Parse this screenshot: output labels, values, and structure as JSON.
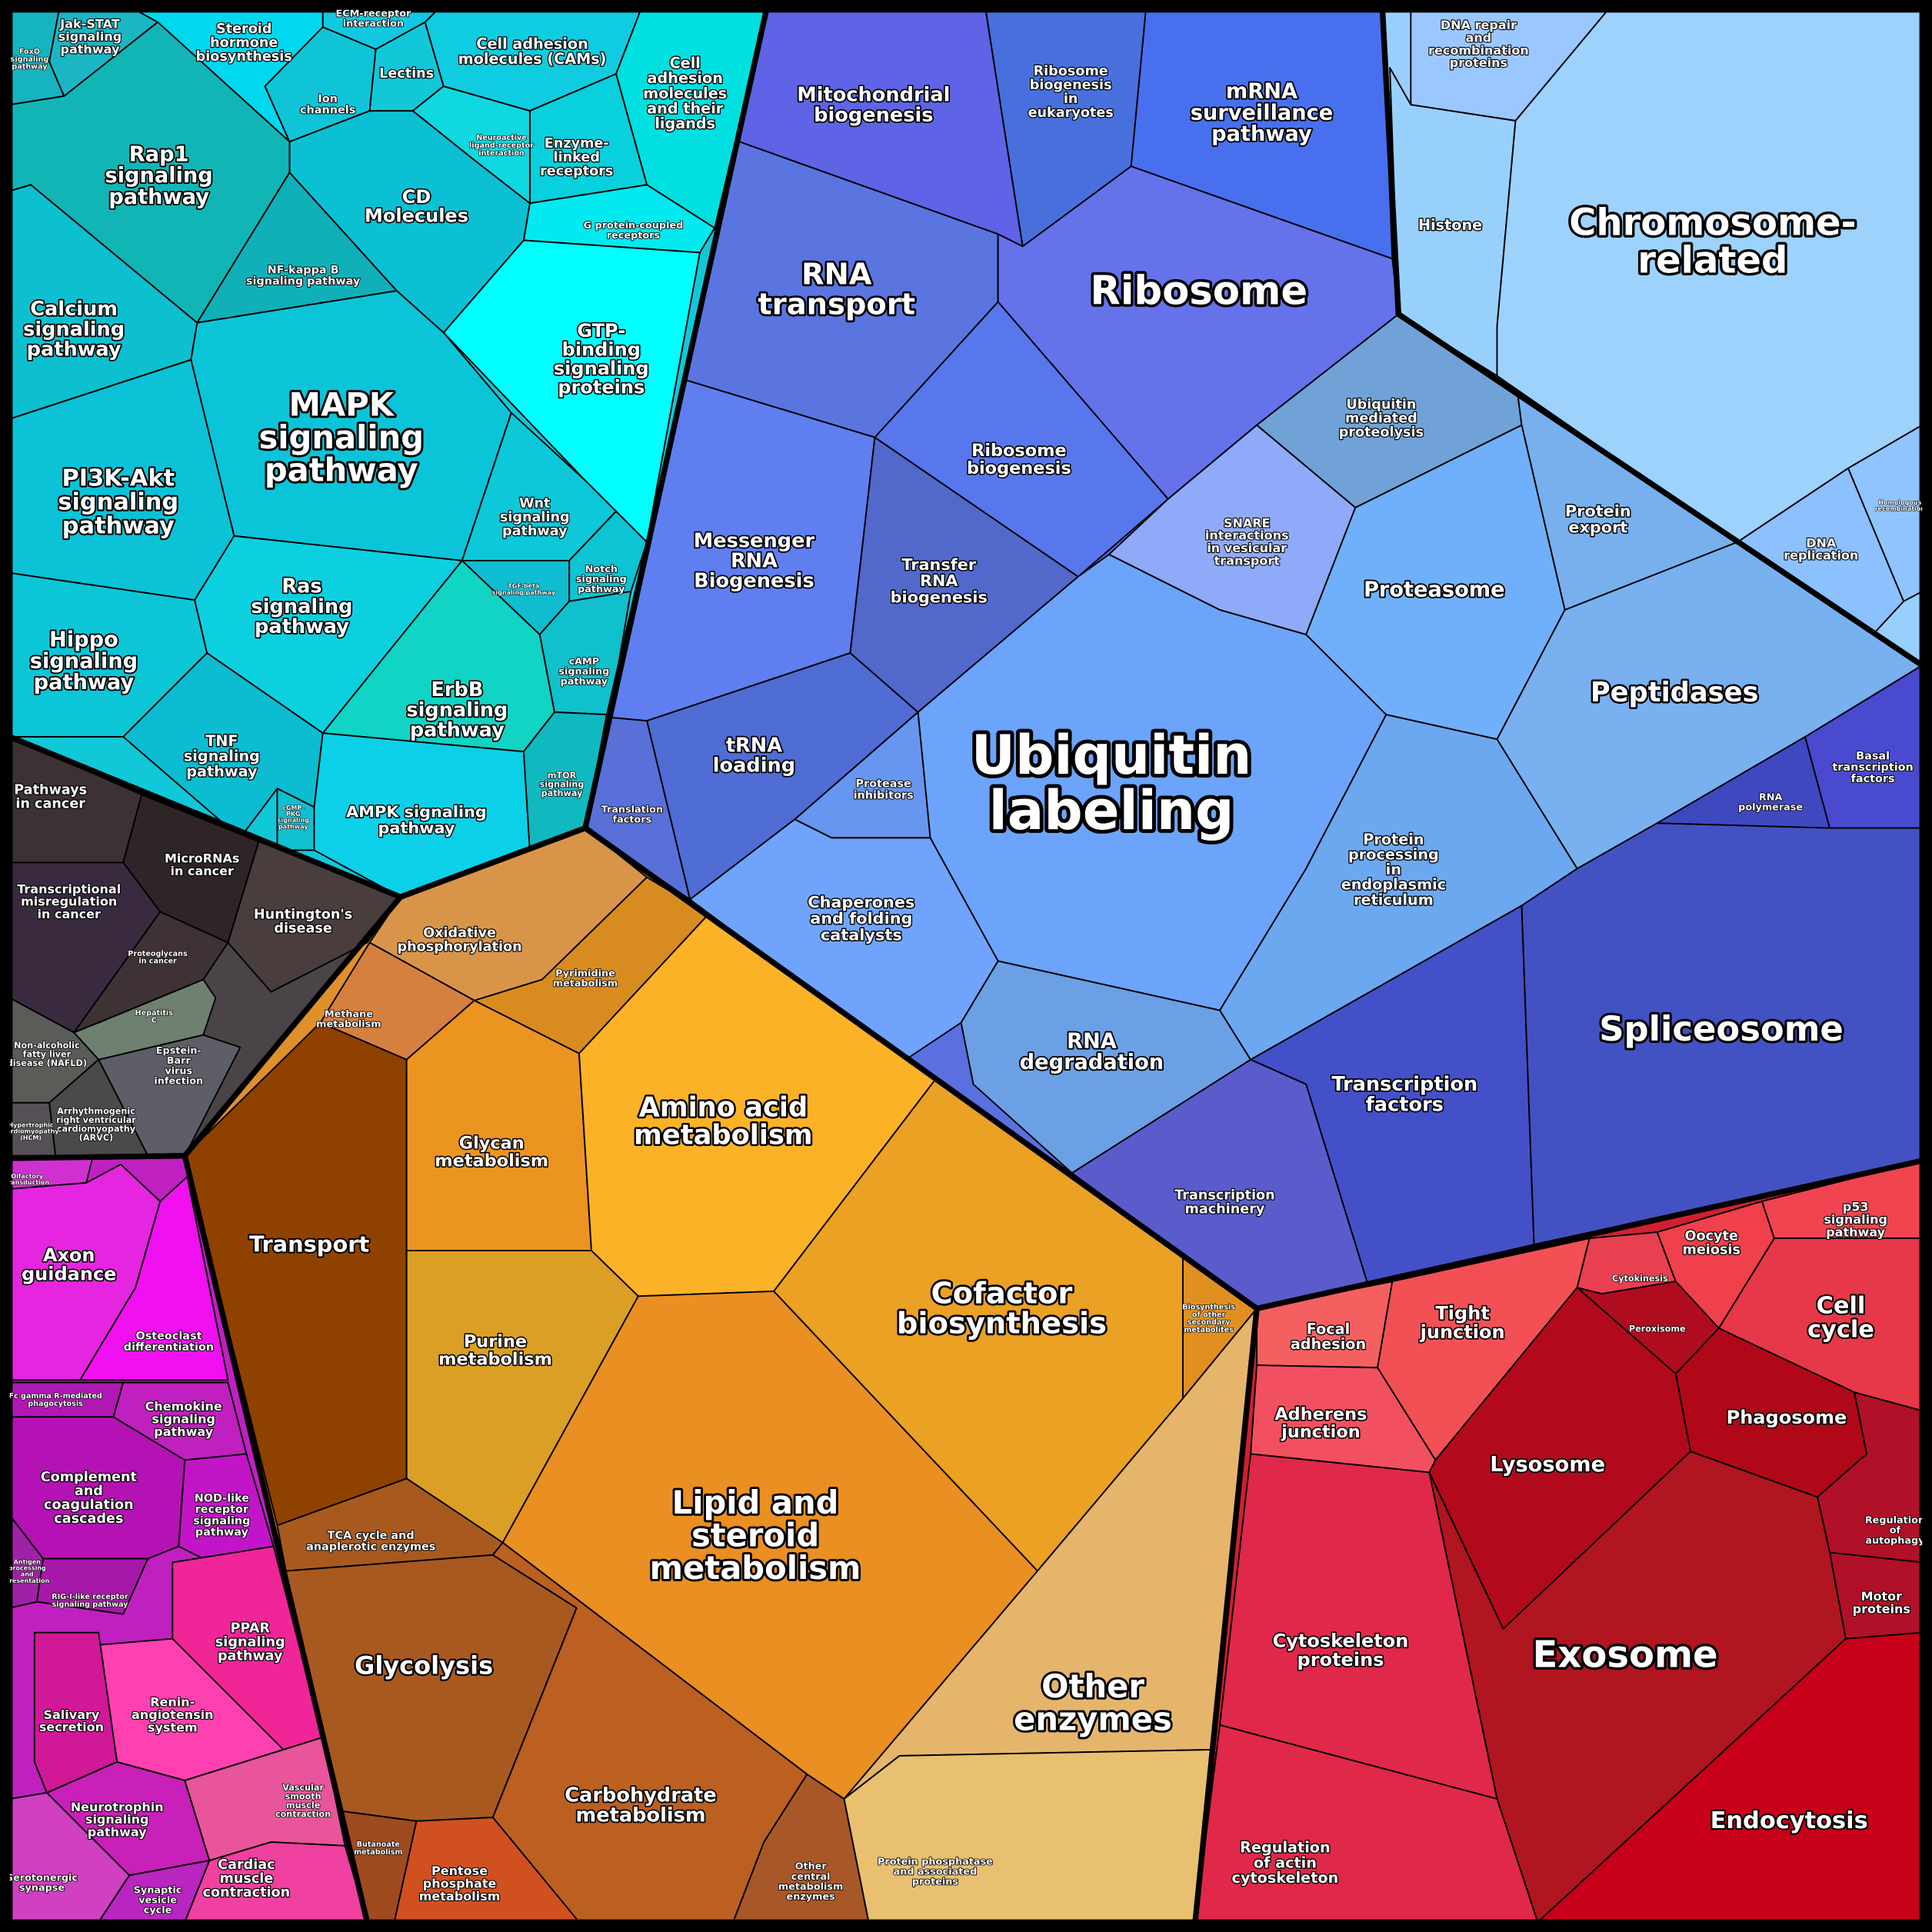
{
  "cells": [
    {
      "label": [
        "FoxO",
        "signaling",
        "pathway"
      ]
    },
    {
      "label": [
        "Jak-STAT",
        "signaling",
        "pathway"
      ]
    },
    {
      "label": [
        "Steroid",
        "hormone",
        "biosynthesis"
      ]
    },
    {
      "label": [
        "ECM-receptor",
        "interaction"
      ]
    },
    {
      "label": [
        "Ion",
        "channels"
      ]
    },
    {
      "label": [
        "Lectins"
      ]
    },
    {
      "label": [
        "Cell adhesion",
        "molecules (CAMs)"
      ]
    },
    {
      "label": [
        "Cell",
        "adhesion",
        "molecules",
        "and their",
        "ligands"
      ]
    },
    {
      "label": [
        "Enzyme-",
        "linked",
        "receptors"
      ]
    },
    {
      "label": [
        "Neuroactive",
        "ligand-receptor",
        "interaction"
      ]
    },
    {
      "label": [
        "G protein-coupled",
        "receptors"
      ]
    },
    {
      "label": [
        "GTP-",
        "binding",
        "signaling",
        "proteins"
      ]
    },
    {
      "label": [
        "CD",
        "Molecules"
      ]
    },
    {
      "label": [
        "Rap1",
        "signaling",
        "pathway"
      ]
    },
    {
      "label": [
        "NF-kappa B",
        "signaling pathway"
      ]
    },
    {
      "label": [
        "Calcium",
        "signaling",
        "pathway"
      ]
    },
    {
      "label": [
        "MAPK",
        "signaling",
        "pathway"
      ]
    },
    {
      "label": [
        "PI3K-Akt",
        "signaling",
        "pathway"
      ]
    },
    {
      "label": [
        "Wnt",
        "signaling",
        "pathway"
      ]
    },
    {
      "label": [
        "Notch",
        "signaling",
        "pathway"
      ]
    },
    {
      "label": [
        "TGF-beta",
        "signaling pathway"
      ]
    },
    {
      "label": [
        "Hippo",
        "signaling",
        "pathway"
      ]
    },
    {
      "label": [
        "Ras",
        "signaling",
        "pathway"
      ]
    },
    {
      "label": [
        "cAMP",
        "signaling",
        "pathway"
      ]
    },
    {
      "label": [
        "ErbB",
        "signaling",
        "pathway"
      ]
    },
    {
      "label": [
        "TNF",
        "signaling",
        "pathway"
      ]
    },
    {
      "label": [
        "cGMP-",
        "PKG",
        "signaling",
        "pathway"
      ]
    },
    {
      "label": [
        "AMPK signaling",
        "pathway"
      ]
    },
    {
      "label": [
        "mTOR",
        "signaling",
        "pathway"
      ]
    },
    {
      "label": [
        "Pathways",
        "in cancer"
      ]
    },
    {
      "label": [
        "MicroRNAs",
        "in cancer"
      ]
    },
    {
      "label": [
        "Transcriptional",
        "misregulation",
        "in cancer"
      ]
    },
    {
      "label": [
        "Huntington's",
        "disease"
      ]
    },
    {
      "label": [
        "Proteoglycans",
        "in cancer"
      ]
    },
    {
      "label": [
        "Hepatitis",
        "C"
      ]
    },
    {
      "label": [
        "Non-alcoholic",
        "fatty liver",
        "disease (NAFLD)"
      ]
    },
    {
      "label": [
        "Epstein-",
        "Barr",
        "virus",
        "infection"
      ]
    },
    {
      "label": [
        "Arrhythmogenic",
        "right ventricular",
        "cardiomyopathy",
        "(ARVC)"
      ]
    },
    {
      "label": [
        "Hypertrophic",
        "cardiomyopathy",
        "(HCM)"
      ]
    },
    {
      "label": [
        "Olfactory",
        "transduction"
      ]
    },
    {
      "label": [
        "Axon",
        "guidance"
      ]
    },
    {
      "label": [
        "Osteoclast",
        "differentiation"
      ]
    },
    {
      "label": [
        "Fc gamma R-mediated",
        "phagocytosis"
      ]
    },
    {
      "label": [
        "Chemokine",
        "signaling",
        "pathway"
      ]
    },
    {
      "label": [
        "Complement",
        "and",
        "coagulation",
        "cascades"
      ]
    },
    {
      "label": [
        "NOD-like",
        "receptor",
        "signaling",
        "pathway"
      ]
    },
    {
      "label": [
        "Antigen",
        "processing",
        "and",
        "presentation"
      ]
    },
    {
      "label": [
        "RIG-I-like receptor",
        "signaling pathway"
      ]
    },
    {
      "label": [
        "PPAR",
        "signaling",
        "pathway"
      ]
    },
    {
      "label": [
        "Renin-",
        "angiotensin",
        "system"
      ]
    },
    {
      "label": [
        "Salivary",
        "secretion"
      ]
    },
    {
      "label": [
        "Neurotrophin",
        "signaling",
        "pathway"
      ]
    },
    {
      "label": [
        "Vascular",
        "smooth",
        "muscle",
        "contraction"
      ]
    },
    {
      "label": [
        "Serotonergic",
        "synapse"
      ]
    },
    {
      "label": [
        "Synaptic",
        "vesicle",
        "cycle"
      ]
    },
    {
      "label": [
        "Cardiac",
        "muscle",
        "contraction"
      ]
    },
    {
      "label": [
        "Oxidative",
        "phosphorylation"
      ]
    },
    {
      "label": [
        "Methane",
        "metabolism"
      ]
    },
    {
      "label": [
        "Pyrimidine",
        "metabolism"
      ]
    },
    {
      "label": [
        "Transport"
      ]
    },
    {
      "label": [
        "Glycan",
        "metabolism"
      ]
    },
    {
      "label": [
        "Amino acid",
        "metabolism"
      ]
    },
    {
      "label": [
        "Purine",
        "metabolism"
      ]
    },
    {
      "label": [
        "Cofactor",
        "biosynthesis"
      ]
    },
    {
      "label": [
        "Biosynthesis",
        "of other",
        "secondary",
        "metabolites"
      ]
    },
    {
      "label": [
        "Lipid and",
        "steroid",
        "metabolism"
      ]
    },
    {
      "label": [
        "Other",
        "enzymes"
      ]
    },
    {
      "label": [
        "Protein phosphatase",
        "and associated",
        "proteins"
      ]
    },
    {
      "label": [
        "TCA cycle and",
        "anaplerotic enzymes"
      ]
    },
    {
      "label": [
        "Glycolysis"
      ]
    },
    {
      "label": [
        "Carbohydrate",
        "metabolism"
      ]
    },
    {
      "label": [
        "Other",
        "central",
        "metabolism",
        "enzymes"
      ]
    },
    {
      "label": [
        "Butanoate",
        "metabolism"
      ]
    },
    {
      "label": [
        "Pentose",
        "phosphate",
        "metabolism"
      ]
    },
    {
      "label": [
        "Mitochondrial",
        "biogenesis"
      ]
    },
    {
      "label": [
        "Ribosome",
        "biogenesis",
        "in",
        "eukaryotes"
      ]
    },
    {
      "label": [
        "mRNA",
        "surveillance",
        "pathway"
      ]
    },
    {
      "label": [
        "RNA",
        "transport"
      ]
    },
    {
      "label": [
        "Ribosome"
      ]
    },
    {
      "label": [
        "Ribosome",
        "biogenesis"
      ]
    },
    {
      "label": [
        "Messenger",
        "RNA",
        "Biogenesis"
      ]
    },
    {
      "label": [
        "Transfer",
        "RNA",
        "biogenesis"
      ]
    },
    {
      "label": [
        "tRNA",
        "loading"
      ]
    },
    {
      "label": [
        "Translation",
        "factors"
      ]
    },
    {
      "label": [
        "Ubiquitin",
        "mediated",
        "proteolysis"
      ]
    },
    {
      "label": [
        "SNARE",
        "interactions",
        "in vesicular",
        "transport"
      ]
    },
    {
      "label": [
        "Protein",
        "export"
      ]
    },
    {
      "label": [
        "Proteasome"
      ]
    },
    {
      "label": [
        "Peptidases"
      ]
    },
    {
      "label": [
        "Ubiquitin",
        "labeling"
      ]
    },
    {
      "label": [
        "Protease",
        "inhibitors"
      ]
    },
    {
      "label": [
        "Chaperones",
        "and folding",
        "catalysts"
      ]
    },
    {
      "label": [
        "RNA",
        "degradation"
      ]
    },
    {
      "label": [
        "Protein",
        "processing",
        "in",
        "endoplasmic",
        "reticulum"
      ]
    },
    {
      "label": [
        "Transcription",
        "factors"
      ]
    },
    {
      "label": [
        "Spliceosome"
      ]
    },
    {
      "label": [
        "RNA",
        "polymerase"
      ]
    },
    {
      "label": [
        "Basal",
        "transcription",
        "factors"
      ]
    },
    {
      "label": [
        "Transcription",
        "machinery"
      ]
    },
    {
      "label": [
        "DNA repair",
        "and",
        "recombination",
        "proteins"
      ]
    },
    {
      "label": [
        "Histone"
      ]
    },
    {
      "label": [
        "Chromosome-",
        "related"
      ]
    },
    {
      "label": [
        "DNA",
        "replication"
      ]
    },
    {
      "label": [
        "Homologous",
        "recombination"
      ]
    },
    {
      "label": [
        "Focal",
        "adhesion"
      ]
    },
    {
      "label": [
        "Tight",
        "junction"
      ]
    },
    {
      "label": [
        "Adherens",
        "junction"
      ]
    },
    {
      "label": [
        "Cytokinesis"
      ]
    },
    {
      "label": [
        "Oocyte",
        "meiosis"
      ]
    },
    {
      "label": [
        "p53",
        "signaling",
        "pathway"
      ]
    },
    {
      "label": [
        "Cell",
        "cycle"
      ]
    },
    {
      "label": [
        "Peroxisome"
      ]
    },
    {
      "label": [
        "Phagosome"
      ]
    },
    {
      "label": [
        "Lysosome"
      ]
    },
    {
      "label": [
        "Regulation",
        "of",
        "autophagy"
      ]
    },
    {
      "label": [
        "Motor",
        "proteins"
      ]
    },
    {
      "label": [
        "Exosome"
      ]
    },
    {
      "label": [
        "Cytoskeleton",
        "proteins"
      ]
    },
    {
      "label": [
        "Regulation",
        "of actin",
        "cytoskeleton"
      ]
    },
    {
      "label": [
        "Endocytosis"
      ]
    }
  ]
}
